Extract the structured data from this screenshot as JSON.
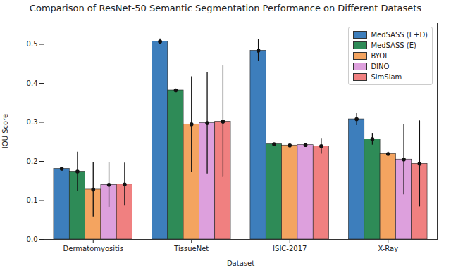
{
  "chart_data": {
    "type": "bar",
    "title": "Comparison of ResNet-50 Semantic Segmentation Performance on Different Datasets",
    "x_label": "Dataset",
    "y_label": "IOU Score",
    "categories": [
      "Dermatomyositis",
      "TissueNet",
      "ISIC-2017",
      "X-Ray"
    ],
    "series": [
      {
        "name": "MedSASS (E+D)",
        "color": "#3d7ebc",
        "values": [
          0.181,
          0.507,
          0.484,
          0.308
        ],
        "errors": [
          0.004,
          0.007,
          0.028,
          0.016
        ]
      },
      {
        "name": "MedSASS (E)",
        "color": "#2e8b57",
        "values": [
          0.174,
          0.382,
          0.244,
          0.257
        ],
        "errors": [
          0.05,
          0.003,
          0.002,
          0.015
        ]
      },
      {
        "name": "BYOL",
        "color": "#f4a460",
        "values": [
          0.128,
          0.295,
          0.241,
          0.219
        ],
        "errors": [
          0.07,
          0.122,
          0.002,
          0.005
        ]
      },
      {
        "name": "DINO",
        "color": "#dda0dd",
        "values": [
          0.14,
          0.298,
          0.242,
          0.205
        ],
        "errors": [
          0.057,
          0.13,
          0.002,
          0.09
        ]
      },
      {
        "name": "SimSiam",
        "color": "#f08080",
        "values": [
          0.141,
          0.302,
          0.239,
          0.194
        ],
        "errors": [
          0.055,
          0.143,
          0.02,
          0.11
        ]
      }
    ],
    "ylim": [
      0,
      0.555
    ],
    "yticks": [
      {
        "value": 0,
        "label": "0.0"
      },
      0.1,
      0.2,
      0.3,
      0.4,
      0.5
    ],
    "grid": false,
    "legend": "upper right"
  }
}
